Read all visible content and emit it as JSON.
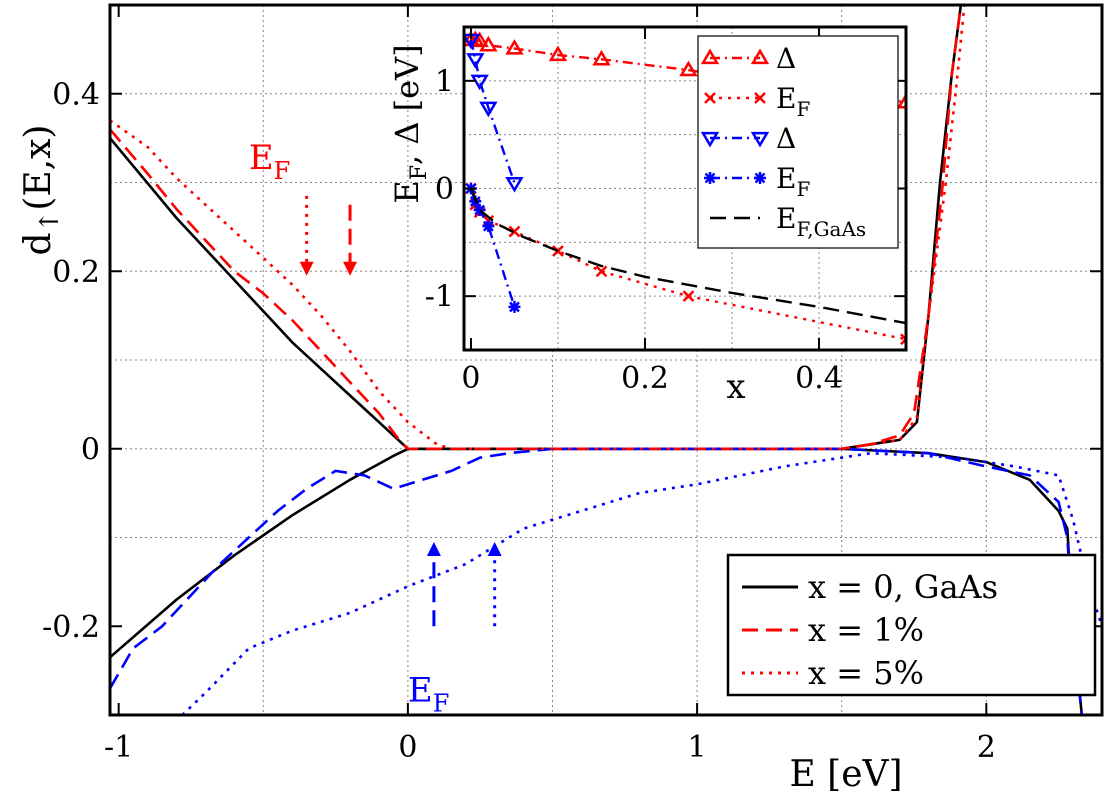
{
  "chart_data": [
    {
      "type": "line",
      "xlabel": "E [eV]",
      "ylabel_main": "d",
      "ylabel_sub": "↑",
      "ylabel_tail": "(E,x)",
      "xlim": [
        -1.03,
        2.4
      ],
      "ylim": [
        -0.3,
        0.5
      ],
      "xticks": [
        -1,
        0,
        1,
        2
      ],
      "xtick_labels": [
        "-1",
        "0",
        "1",
        "2"
      ],
      "yticks": [
        -0.2,
        0,
        0.2,
        0.4
      ],
      "ytick_labels": [
        "-0.2",
        "0",
        "0.2",
        "0.4"
      ],
      "xgrid": [
        -0.5,
        0,
        0.5,
        1,
        1.5,
        2
      ],
      "ygrid": [
        -0.1,
        0,
        0.1,
        0.2,
        0.3,
        0.4
      ],
      "grid": true,
      "legend_position": "bottom-right",
      "legend": [
        {
          "label": "x = 0, GaAs",
          "color": "#000000",
          "dash": "solid"
        },
        {
          "label": "x = 1%",
          "color": "#ff0000",
          "dash": "dashed"
        },
        {
          "label": "x = 5%",
          "color": "#ff0000",
          "dash": "dotted"
        }
      ],
      "series": [
        {
          "name": "x = 0, GaAs (up)",
          "color": "#000000",
          "dash": "solid",
          "x": [
            -1.03,
            -0.8,
            -0.6,
            -0.4,
            -0.2,
            -0.05,
            0,
            0.5,
            1.0,
            1.5,
            1.7,
            1.76,
            1.8,
            1.84,
            1.88,
            1.92
          ],
          "y": [
            0.35,
            0.26,
            0.19,
            0.12,
            0.06,
            0.015,
            0,
            0,
            0,
            0,
            0.01,
            0.03,
            0.15,
            0.3,
            0.42,
            0.52
          ]
        },
        {
          "name": "x = 0, GaAs (down)",
          "color": "#000000",
          "dash": "solid",
          "x": [
            -1.03,
            -0.8,
            -0.6,
            -0.4,
            -0.2,
            -0.05,
            0,
            0.5,
            1.0,
            1.5,
            1.8,
            2.0,
            2.15,
            2.25,
            2.28,
            2.3,
            2.33
          ],
          "y": [
            -0.235,
            -0.17,
            -0.12,
            -0.075,
            -0.035,
            -0.008,
            0,
            0,
            0,
            0,
            -0.005,
            -0.015,
            -0.035,
            -0.07,
            -0.09,
            -0.2,
            -0.3
          ]
        },
        {
          "name": "x = 1% (up)",
          "color": "#ff0000",
          "dash": "dashed",
          "x": [
            -1.03,
            -0.9,
            -0.8,
            -0.7,
            -0.6,
            -0.5,
            -0.4,
            -0.3,
            -0.2,
            -0.1,
            -0.03,
            0,
            1.5,
            1.6,
            1.7,
            1.75,
            1.8,
            1.85,
            1.88,
            1.92
          ],
          "y": [
            0.36,
            0.31,
            0.27,
            0.235,
            0.2,
            0.175,
            0.145,
            0.11,
            0.075,
            0.04,
            0.01,
            0,
            0,
            0.005,
            0.015,
            0.04,
            0.15,
            0.3,
            0.42,
            0.52
          ]
        },
        {
          "name": "x = 1% (down)",
          "color": "#0000ff",
          "dash": "dashed",
          "x": [
            -1.03,
            -0.95,
            -0.85,
            -0.75,
            -0.65,
            -0.55,
            -0.45,
            -0.35,
            -0.25,
            -0.15,
            -0.05,
            0.05,
            0.15,
            0.25,
            0.35,
            0.5,
            1.0,
            1.5,
            1.8,
            2.0,
            2.15,
            2.25,
            2.28,
            2.3,
            2.33
          ],
          "y": [
            -0.27,
            -0.225,
            -0.2,
            -0.165,
            -0.13,
            -0.1,
            -0.07,
            -0.045,
            -0.025,
            -0.03,
            -0.045,
            -0.035,
            -0.025,
            -0.01,
            -0.005,
            0,
            0,
            0,
            -0.005,
            -0.02,
            -0.03,
            -0.06,
            -0.1,
            -0.2,
            -0.3
          ]
        },
        {
          "name": "x = 5% (up)",
          "color": "#ff0000",
          "dash": "dotted",
          "x": [
            -1.03,
            -0.9,
            -0.8,
            -0.7,
            -0.6,
            -0.5,
            -0.4,
            -0.3,
            -0.2,
            -0.1,
            0,
            0.1,
            0.15,
            0.5,
            1.0,
            1.5,
            1.7,
            1.76,
            1.8,
            1.86,
            1.9,
            1.93
          ],
          "y": [
            0.37,
            0.34,
            0.305,
            0.275,
            0.245,
            0.215,
            0.185,
            0.15,
            0.11,
            0.065,
            0.03,
            0.005,
            0,
            0,
            0,
            0,
            0.01,
            0.035,
            0.15,
            0.3,
            0.42,
            0.52
          ]
        },
        {
          "name": "x = 5% (down)",
          "color": "#0000ff",
          "dash": "dotted",
          "x": [
            -0.78,
            -0.7,
            -0.55,
            -0.4,
            -0.2,
            0,
            0.2,
            0.4,
            0.6,
            0.8,
            1.0,
            1.3,
            1.6,
            1.9,
            2.1,
            2.25,
            2.3,
            2.35,
            2.4
          ],
          "y": [
            -0.3,
            -0.275,
            -0.225,
            -0.205,
            -0.185,
            -0.155,
            -0.13,
            -0.09,
            -0.07,
            -0.05,
            -0.04,
            -0.02,
            -0.005,
            -0.01,
            -0.02,
            -0.03,
            -0.08,
            -0.15,
            -0.2
          ]
        }
      ],
      "annotations": [
        {
          "label": "E",
          "sub": "F",
          "x": -0.55,
          "y": 0.315,
          "color": "#ff0000"
        },
        {
          "label": "E",
          "sub": "F",
          "x": 0.0,
          "y": -0.285,
          "color": "#0000ff"
        }
      ],
      "arrows": [
        {
          "x": -0.35,
          "y_from": 0.285,
          "y_to": 0.195,
          "dir": "down",
          "color": "#ff0000",
          "dash": "dotted"
        },
        {
          "x": -0.2,
          "y_from": 0.275,
          "y_to": 0.195,
          "dir": "down",
          "color": "#ff0000",
          "dash": "dashed"
        },
        {
          "x": 0.09,
          "y_from": -0.2,
          "y_to": -0.105,
          "dir": "up",
          "color": "#0000ff",
          "dash": "dashed"
        },
        {
          "x": 0.3,
          "y_from": -0.2,
          "y_to": -0.105,
          "dir": "up",
          "color": "#0000ff",
          "dash": "dotted"
        }
      ]
    },
    {
      "type": "line",
      "xlabel": "x",
      "ylabel_parts": [
        "E",
        "F",
        ", Δ [eV]"
      ],
      "xlim": [
        -0.008,
        0.5
      ],
      "ylim": [
        -1.5,
        1.5
      ],
      "xticks": [
        0,
        0.2,
        0.4
      ],
      "xtick_labels": [
        "0",
        "0.2",
        "0.4"
      ],
      "yticks": [
        -1,
        0,
        1
      ],
      "ytick_labels": [
        "-1",
        "0",
        "1"
      ],
      "xgrid": [
        0.1,
        0.2,
        0.3,
        0.4
      ],
      "ygrid": [
        -1,
        -0.5,
        0,
        0.5,
        1
      ],
      "grid": true,
      "legend_position": "top-right",
      "legend": [
        {
          "label": "Δ",
          "sub": "",
          "color": "#ff0000",
          "marker": "triangle-up",
          "dash": "dashdot"
        },
        {
          "label": "E",
          "sub": "F",
          "color": "#ff0000",
          "marker": "cross",
          "dash": "dotted"
        },
        {
          "label": "Δ",
          "sub": "",
          "color": "#0000ff",
          "marker": "triangle-down",
          "dash": "dashdot"
        },
        {
          "label": "E",
          "sub": "F",
          "color": "#0000ff",
          "marker": "star",
          "dash": "dashdot"
        },
        {
          "label": "E",
          "sub": "F,GaAs",
          "color": "#000000",
          "marker": "none",
          "dash": "dashed"
        }
      ],
      "series": [
        {
          "name": "Δ (up, red)",
          "color": "#ff0000",
          "marker": "triangle-up",
          "dash": "dashdot",
          "x": [
            0,
            0.005,
            0.01,
            0.02,
            0.05,
            0.1,
            0.15,
            0.25,
            0.5
          ],
          "y": [
            1.38,
            1.38,
            1.37,
            1.33,
            1.3,
            1.24,
            1.2,
            1.1,
            0.8
          ]
        },
        {
          "name": "E_F (red)",
          "color": "#ff0000",
          "marker": "cross",
          "dash": "dotted",
          "x": [
            0,
            0.005,
            0.01,
            0.02,
            0.05,
            0.1,
            0.15,
            0.25,
            0.5
          ],
          "y": [
            0,
            -0.15,
            -0.22,
            -0.3,
            -0.4,
            -0.58,
            -0.77,
            -1.0,
            -1.4
          ]
        },
        {
          "name": "Δ (down, blue)",
          "color": "#0000ff",
          "marker": "triangle-down",
          "dash": "dashdot",
          "x": [
            0,
            0.005,
            0.01,
            0.02,
            0.05
          ],
          "y": [
            1.38,
            1.2,
            1.0,
            0.75,
            0.05
          ]
        },
        {
          "name": "E_F (blue)",
          "color": "#0000ff",
          "marker": "star",
          "dash": "dashdot",
          "x": [
            0,
            0.005,
            0.01,
            0.02,
            0.05
          ],
          "y": [
            0,
            -0.12,
            -0.2,
            -0.35,
            -1.1
          ]
        },
        {
          "name": "E_F,GaAs",
          "color": "#000000",
          "marker": "none",
          "dash": "dashed",
          "x": [
            0,
            0.01,
            0.03,
            0.06,
            0.1,
            0.15,
            0.2,
            0.3,
            0.4,
            0.5
          ],
          "y": [
            0,
            -0.2,
            -0.33,
            -0.45,
            -0.58,
            -0.72,
            -0.82,
            -0.97,
            -1.1,
            -1.25
          ]
        }
      ]
    }
  ]
}
